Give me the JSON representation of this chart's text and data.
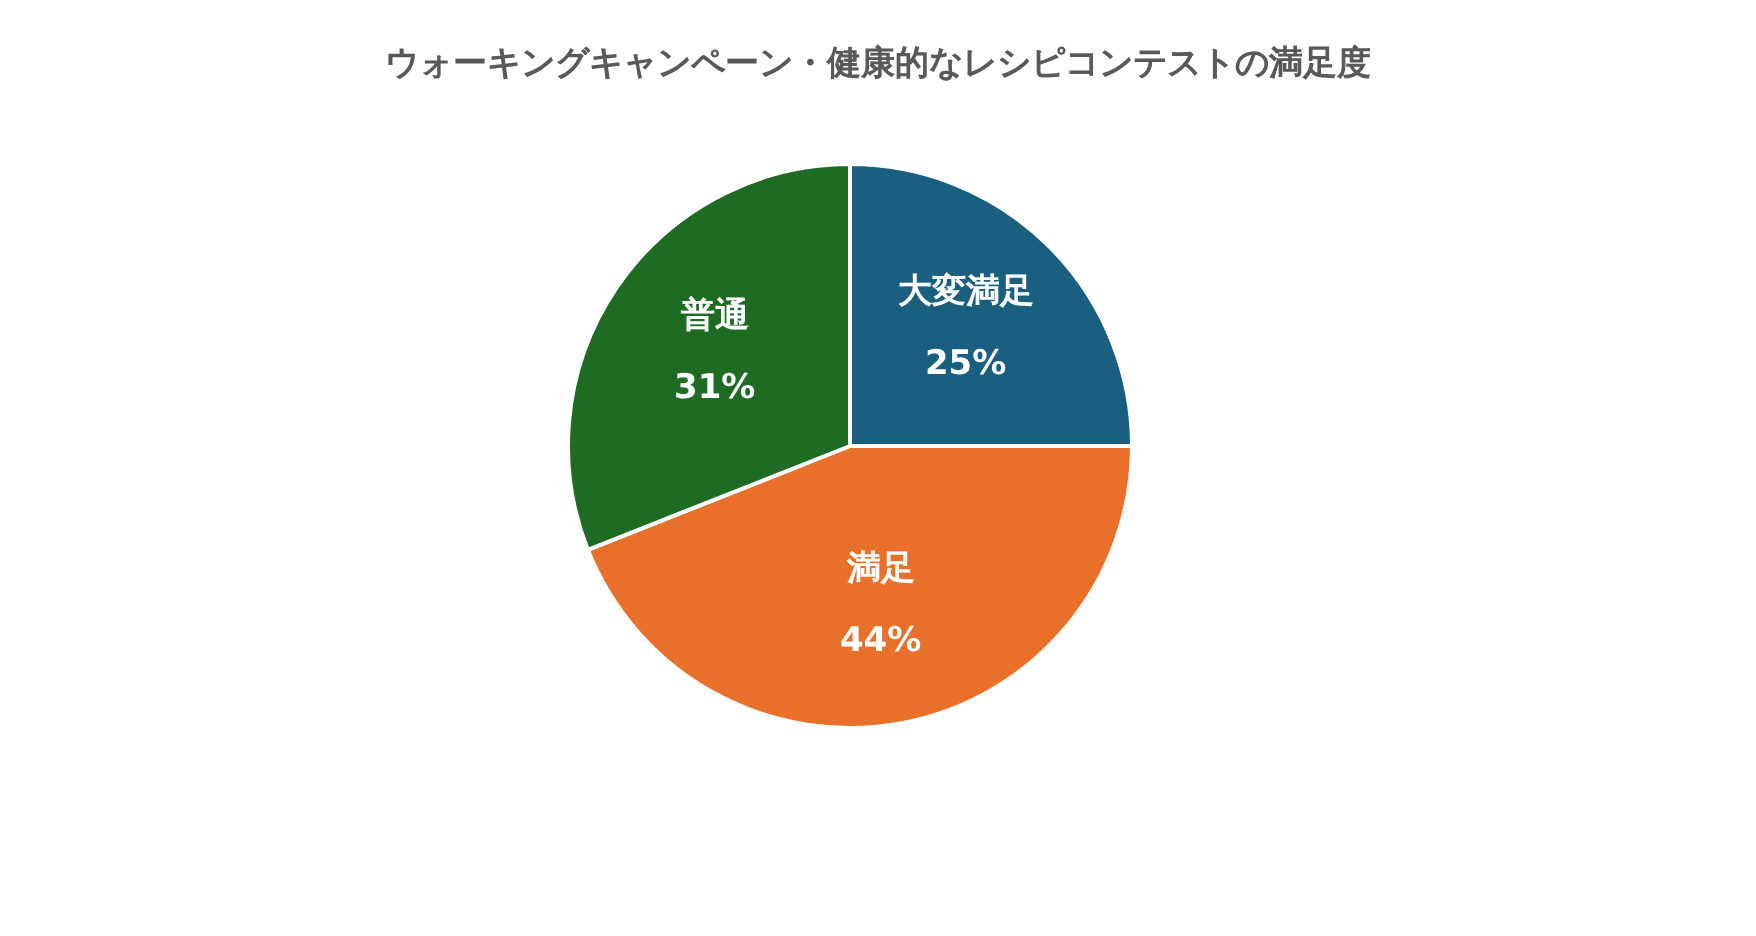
{
  "chart_data": {
    "type": "pie",
    "title": "ウォーキングキャンペーン・健康的なレシピコンテストの満足度",
    "categories": [
      "大変満足",
      "満足",
      "普通"
    ],
    "values": [
      25,
      44,
      31
    ],
    "value_labels": [
      "25%",
      "44%",
      "31%"
    ],
    "colors": [
      "#1a5e80",
      "#e8702a",
      "#1e6b24"
    ],
    "legend": false
  }
}
